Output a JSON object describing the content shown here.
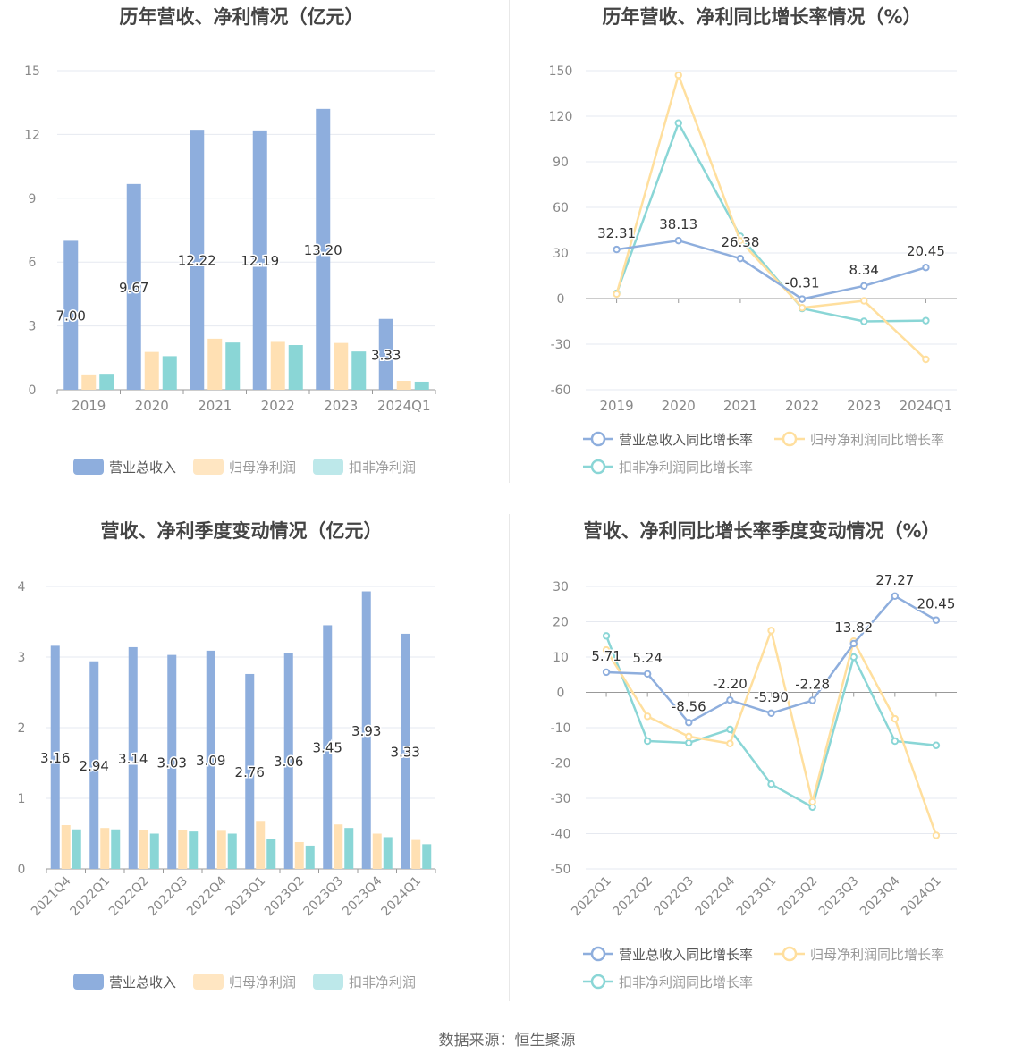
{
  "source_text": "数据来源：恒生聚源",
  "colors": {
    "revenue": "#8eaedd",
    "net_profit": "#ffe0b3",
    "deducted_profit": "#8ad6d6",
    "revenue_line": "#8eaedd",
    "net_profit_line": "#ffdf9e",
    "deducted_profit_line": "#8ad6d6"
  },
  "chart_data": [
    {
      "type": "bar",
      "title": "历年营收、净利情况（亿元）",
      "categories": [
        "2019",
        "2020",
        "2021",
        "2022",
        "2023",
        "2024Q1"
      ],
      "ylim": [
        0,
        15
      ],
      "yticks": [
        0,
        3,
        6,
        9,
        12,
        15
      ],
      "grid": true,
      "legend_position": "bottom",
      "series": [
        {
          "name": "营业总收入",
          "values": [
            7.0,
            9.67,
            12.22,
            12.19,
            13.2,
            3.33
          ],
          "labels": [
            "7.00",
            "9.67",
            "12.22",
            "12.19",
            "13.20",
            "3.33"
          ]
        },
        {
          "name": "归母净利润",
          "values": [
            0.72,
            1.78,
            2.4,
            2.25,
            2.2,
            0.42
          ]
        },
        {
          "name": "扣非净利润",
          "values": [
            0.75,
            1.58,
            2.22,
            2.1,
            1.8,
            0.38
          ]
        }
      ]
    },
    {
      "type": "line",
      "title": "历年营收、净利同比增长率情况（%）",
      "categories": [
        "2019",
        "2020",
        "2021",
        "2022",
        "2023",
        "2024Q1"
      ],
      "ylim": [
        -60,
        150
      ],
      "yticks": [
        -60,
        -30,
        0,
        30,
        60,
        90,
        120,
        150
      ],
      "grid": true,
      "legend_position": "bottom",
      "series": [
        {
          "name": "营业总收入同比增长率",
          "values": [
            32.31,
            38.13,
            26.38,
            -0.31,
            8.34,
            20.45
          ],
          "labels": [
            "32.31",
            "38.13",
            "26.38",
            "-0.31",
            "8.34",
            "20.45"
          ]
        },
        {
          "name": "归母净利润同比增长率",
          "values": [
            3.0,
            147.0,
            38.0,
            -6.0,
            -1.5,
            -40.0
          ]
        },
        {
          "name": "扣非净利润同比增长率",
          "values": [
            3.5,
            115.5,
            41.0,
            -6.5,
            -15.0,
            -14.5
          ]
        }
      ]
    },
    {
      "type": "bar",
      "title": "营收、净利季度变动情况（亿元）",
      "categories": [
        "2021Q4",
        "2022Q1",
        "2022Q2",
        "2022Q3",
        "2022Q4",
        "2023Q1",
        "2023Q2",
        "2023Q3",
        "2023Q4",
        "2024Q1"
      ],
      "ylim": [
        0,
        4
      ],
      "yticks": [
        0,
        1,
        2,
        3,
        4
      ],
      "grid": true,
      "legend_position": "bottom",
      "series": [
        {
          "name": "营业总收入",
          "values": [
            3.16,
            2.94,
            3.14,
            3.03,
            3.09,
            2.76,
            3.06,
            3.45,
            3.93,
            3.33
          ],
          "labels": [
            "3.16",
            "2.94",
            "3.14",
            "3.03",
            "3.09",
            "2.76",
            "3.06",
            "3.45",
            "3.93",
            "3.33"
          ]
        },
        {
          "name": "归母净利润",
          "values": [
            0.62,
            0.58,
            0.55,
            0.55,
            0.54,
            0.68,
            0.38,
            0.63,
            0.5,
            0.41
          ]
        },
        {
          "name": "扣非净利润",
          "values": [
            0.56,
            0.56,
            0.5,
            0.53,
            0.5,
            0.42,
            0.33,
            0.58,
            0.45,
            0.35
          ]
        }
      ]
    },
    {
      "type": "line",
      "title": "营收、净利同比增长率季度变动情况（%）",
      "categories": [
        "2022Q1",
        "2022Q2",
        "2022Q3",
        "2022Q4",
        "2023Q1",
        "2023Q2",
        "2023Q3",
        "2023Q4",
        "2024Q1"
      ],
      "ylim": [
        -50,
        30
      ],
      "yticks": [
        -50,
        -40,
        -30,
        -20,
        -10,
        0,
        10,
        20,
        30
      ],
      "grid": true,
      "legend_position": "bottom",
      "series": [
        {
          "name": "营业总收入同比增长率",
          "values": [
            5.71,
            5.24,
            -8.56,
            -2.2,
            -5.9,
            -2.28,
            13.82,
            27.27,
            20.45
          ],
          "labels": [
            "5.71",
            "5.24",
            "-8.56",
            "-2.20",
            "-5.90",
            "-2.28",
            "13.82",
            "27.27",
            "20.45"
          ]
        },
        {
          "name": "归母净利润同比增长率",
          "values": [
            12.0,
            -6.8,
            -12.5,
            -14.5,
            17.5,
            -31.0,
            14.5,
            -7.5,
            -40.5
          ]
        },
        {
          "name": "扣非净利润同比增长率",
          "values": [
            16.0,
            -13.8,
            -14.3,
            -10.5,
            -26.0,
            -32.5,
            10.0,
            -13.8,
            -15.0
          ]
        }
      ]
    }
  ]
}
